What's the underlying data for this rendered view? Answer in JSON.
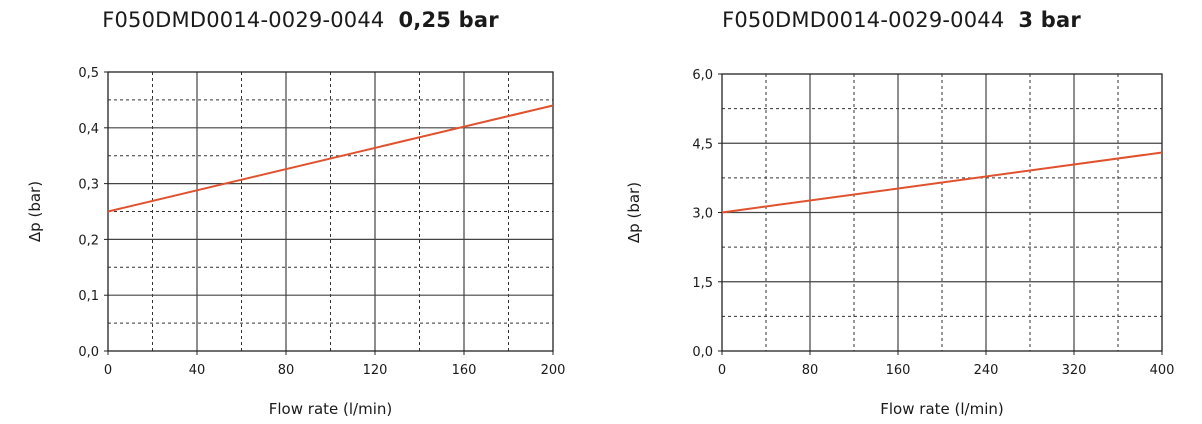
{
  "chart_data": [
    {
      "type": "line",
      "title": "F050DMD0014-0029-0044",
      "title_bold": "0,25 bar",
      "xlabel": "Flow rate (l/min)",
      "ylabel": "Δp (bar)",
      "xlim": [
        0,
        200
      ],
      "ylim": [
        0,
        0.5
      ],
      "x_ticks": [
        0,
        40,
        80,
        120,
        160,
        200
      ],
      "x_tick_labels": [
        "0",
        "40",
        "80",
        "120",
        "160",
        "200"
      ],
      "y_ticks": [
        0,
        0.1,
        0.2,
        0.3,
        0.4,
        0.5
      ],
      "y_tick_labels": [
        "0,0",
        "0,1",
        "0,2",
        "0,3",
        "0,4",
        "0,5"
      ],
      "x_minor_step": 20,
      "y_minor_step": 0.05,
      "grid": true,
      "series": [
        {
          "color": "#e0522e",
          "x": [
            0,
            200
          ],
          "y": [
            0.25,
            0.44
          ]
        }
      ]
    },
    {
      "type": "line",
      "title": "F050DMD0014-0029-0044",
      "title_bold": "3 bar",
      "xlabel": "Flow rate (l/min)",
      "ylabel": "Δp (bar)",
      "xlim": [
        0,
        400
      ],
      "ylim": [
        0,
        6
      ],
      "x_ticks": [
        0,
        80,
        160,
        240,
        320,
        400
      ],
      "x_tick_labels": [
        "0",
        "80",
        "160",
        "240",
        "320",
        "400"
      ],
      "y_ticks": [
        0,
        1.5,
        3,
        4.5,
        6
      ],
      "y_tick_labels": [
        "0,0",
        "1,5",
        "3,0",
        "4,5",
        "6,0"
      ],
      "x_minor_step": 40,
      "y_minor_step": 0.75,
      "grid": true,
      "series": [
        {
          "color": "#e0522e",
          "x": [
            0,
            400
          ],
          "y": [
            3.0,
            4.3
          ]
        }
      ]
    }
  ]
}
